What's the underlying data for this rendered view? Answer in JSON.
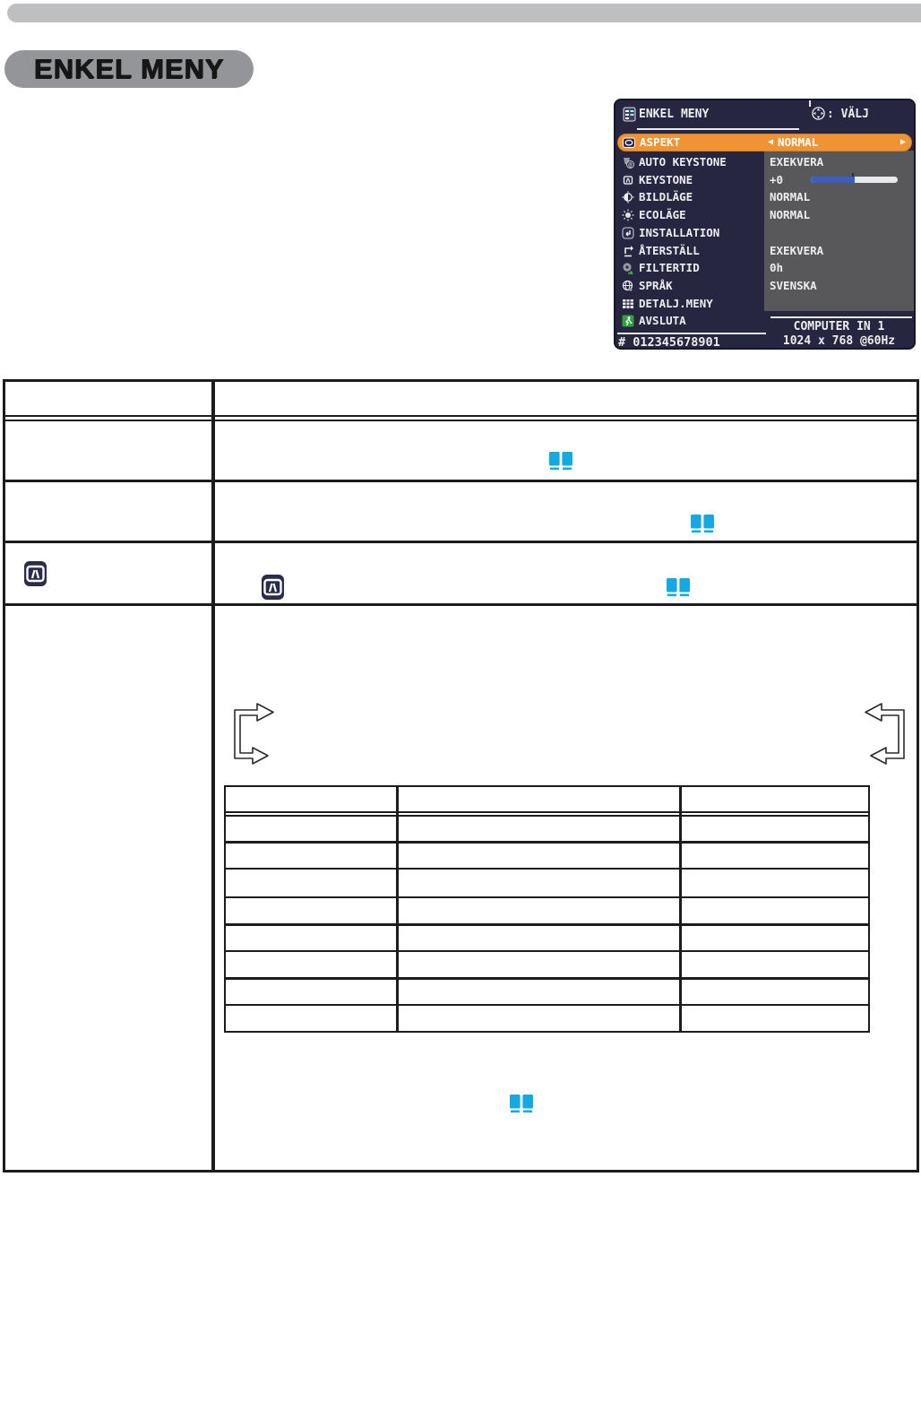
{
  "page": {
    "heading": "ENKEL MENY"
  },
  "colors": {
    "topbar_gray": "#bdbfc1",
    "pill_gray": "#939598",
    "osd_background": "#262641",
    "osd_values_panel": "#58585a",
    "highlight_orange": "#ef9335",
    "slider_blue": "#3a5fc0",
    "book_icon_blue": "#16a8e0",
    "table_line": "#1c1c1c"
  },
  "osd": {
    "title": "ENKEL MENY",
    "select_hint": ": VÄLJ",
    "aspect_left_arrow": "◀",
    "aspect_right_arrow": "▶",
    "items": [
      {
        "icon": "monitor-icon",
        "label": "ASPEKT",
        "value": "NORMAL",
        "selected": true
      },
      {
        "icon": "auto-keystone-icon",
        "label": "AUTO KEYSTONE",
        "value": "EXEKVERA"
      },
      {
        "icon": "keystone-icon",
        "label": "KEYSTONE",
        "value": "+0",
        "slider": {
          "percent": 50
        }
      },
      {
        "icon": "contrast-icon",
        "label": "BILDLÄGE",
        "value": "NORMAL"
      },
      {
        "icon": "sun-icon",
        "label": "ECOLÄGE",
        "value": "NORMAL"
      },
      {
        "icon": "installation-icon",
        "label": "INSTALLATION",
        "value": ""
      },
      {
        "icon": "undo-icon",
        "label": "ÅTERSTÄLL",
        "value": "EXEKVERA"
      },
      {
        "icon": "filter-icon",
        "label": "FILTERTID",
        "value": "0h"
      },
      {
        "icon": "globe-icon",
        "label": "SPRÅK",
        "value": "SVENSKA"
      },
      {
        "icon": "grid-icon",
        "label": "DETALJ.MENY",
        "value": ""
      },
      {
        "icon": "exit-icon",
        "label": "AVSLUTA",
        "value": ""
      }
    ],
    "footer_left": "# 012345678901",
    "source": "COMPUTER IN 1",
    "resolution": "1024 x 768 @60Hz"
  }
}
